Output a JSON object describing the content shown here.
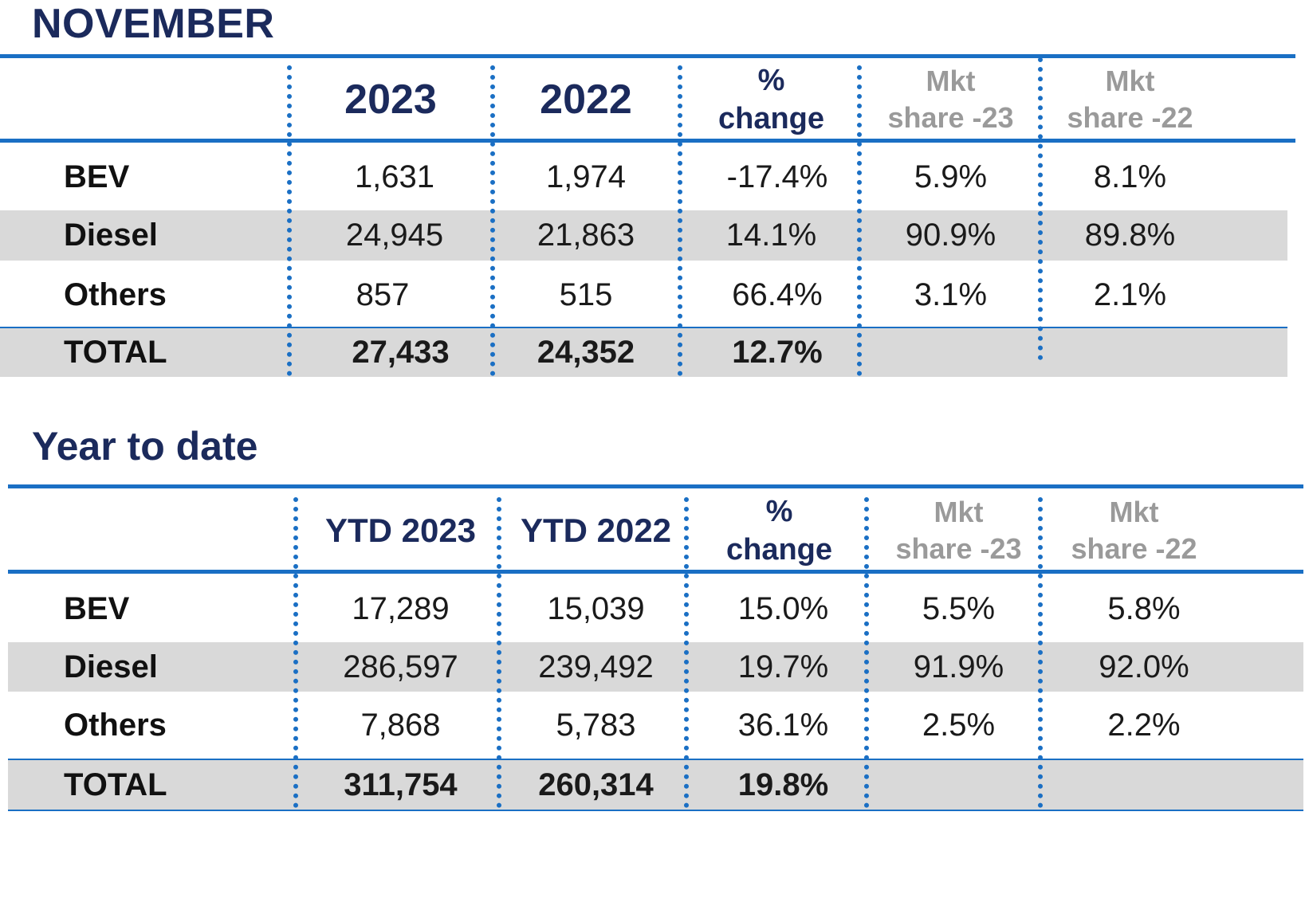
{
  "november": {
    "title": "NOVEMBER",
    "headers": {
      "col1": "2023",
      "col2": "2022",
      "pct_line1": "%",
      "pct_line2": "change",
      "mkt23_line1": "Mkt",
      "mkt23_line2": "share -23",
      "mkt22_line1": "Mkt",
      "mkt22_line2": "share -22"
    },
    "rows": [
      {
        "label": "BEV",
        "v2023": "1,631",
        "v2022": "1,974",
        "pct": "-17.4%",
        "mkt23": "5.9%",
        "mkt22": "8.1%"
      },
      {
        "label": "Diesel",
        "v2023": "24,945",
        "v2022": "21,863",
        "pct": "14.1%",
        "mkt23": "90.9%",
        "mkt22": "89.8%"
      },
      {
        "label": "Others",
        "v2023": "857",
        "v2022": "515",
        "pct": "66.4%",
        "mkt23": "3.1%",
        "mkt22": "2.1%"
      }
    ],
    "total": {
      "label": "TOTAL",
      "v2023": "27,433",
      "v2022": "24,352",
      "pct": "12.7%"
    }
  },
  "ytd": {
    "title": "Year to date",
    "headers": {
      "col1": "YTD 2023",
      "col2": "YTD 2022",
      "pct_line1": "%",
      "pct_line2": "change",
      "mkt23_line1": "Mkt",
      "mkt23_line2": "share -23",
      "mkt22_line1": "Mkt",
      "mkt22_line2": "share -22"
    },
    "rows": [
      {
        "label": "BEV",
        "v2023": "17,289",
        "v2022": "15,039",
        "pct": "15.0%",
        "mkt23": "5.5%",
        "mkt22": "5.8%"
      },
      {
        "label": "Diesel",
        "v2023": "286,597",
        "v2022": "239,492",
        "pct": "19.7%",
        "mkt23": "91.9%",
        "mkt22": "92.0%"
      },
      {
        "label": "Others",
        "v2023": "7,868",
        "v2022": "5,783",
        "pct": "36.1%",
        "mkt23": "2.5%",
        "mkt22": "2.2%"
      }
    ],
    "total": {
      "label": "TOTAL",
      "v2023": "311,754",
      "v2022": "260,314",
      "pct": "19.8%"
    }
  },
  "colors": {
    "accent_blue": "#1a6fc4",
    "heading_navy": "#1b2a5c",
    "header_gray": "#9a9a9a",
    "row_shade": "#d9d9d9"
  }
}
